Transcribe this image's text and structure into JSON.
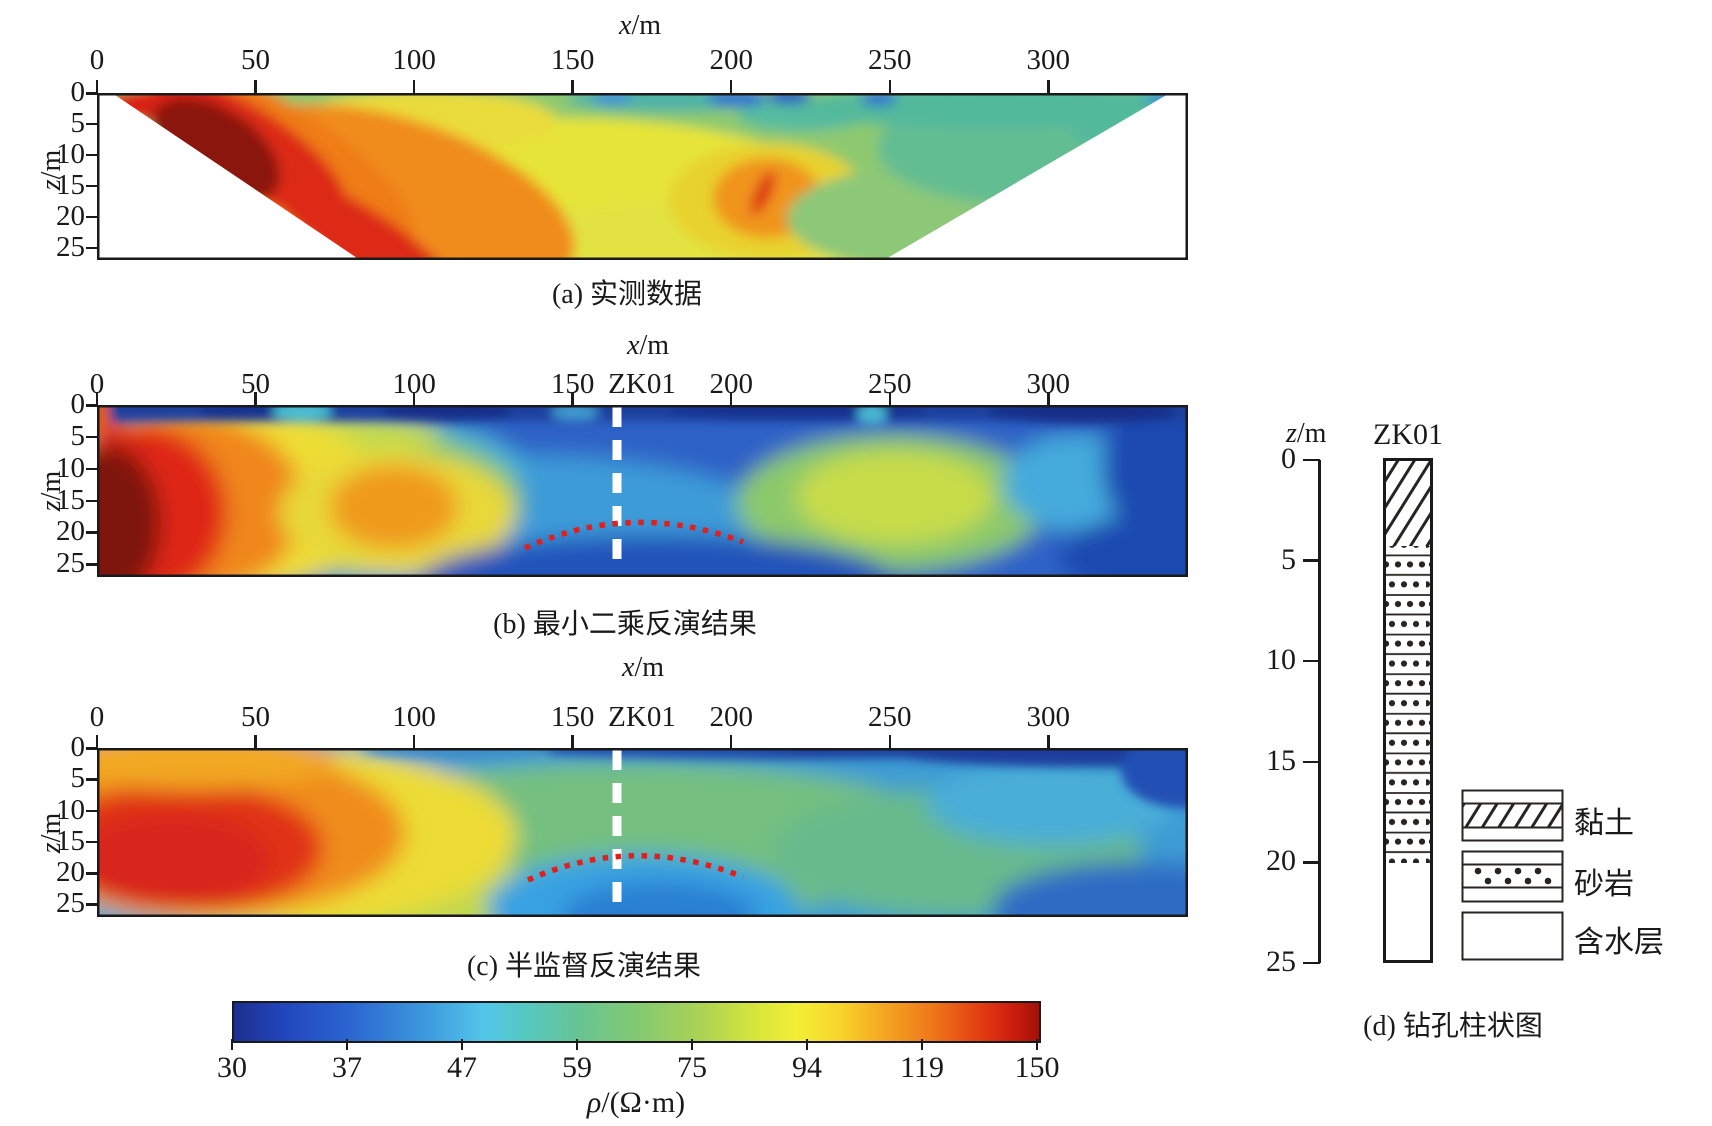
{
  "panels": {
    "a": {
      "caption": "(a) 实测数据"
    },
    "b": {
      "caption": "(b) 最小二乘反演结果"
    },
    "c": {
      "caption": "(c) 半监督反演结果"
    },
    "d": {
      "caption": "(d) 钻孔柱状图"
    }
  },
  "axes": {
    "x_symbol": "x",
    "x_unit": "/m",
    "z_symbol": "z",
    "z_unit": "/m",
    "x_ticks": [
      0,
      50,
      100,
      150,
      200,
      250,
      300
    ],
    "z_ticks": [
      0,
      5,
      10,
      15,
      20,
      25
    ]
  },
  "annotations": {
    "well_label": "ZK01",
    "well_position_x_m": 164,
    "white_dashed_line": "borehole ZK01 trace",
    "red_dotted_line": "inferred sandstone/aquifer interface arc"
  },
  "colorbar": {
    "ticks": [
      30,
      37,
      47,
      59,
      75,
      94,
      119,
      150
    ],
    "label_symbol": "ρ",
    "label_rest": "/(Ω·m)",
    "scale": "logarithmic",
    "colormap": "jet"
  },
  "borehole": {
    "well_id": "ZK01",
    "depth_ticks": [
      0,
      5,
      10,
      15,
      20,
      25
    ],
    "layers": [
      {
        "label": "黏土",
        "pattern": "diagonal-hatch",
        "from_m": 0,
        "to_m": 4.4
      },
      {
        "label": "砂岩",
        "pattern": "dotted-rows",
        "from_m": 4.4,
        "to_m": 20
      },
      {
        "label": "含水层",
        "pattern": "blank",
        "from_m": 20,
        "to_m": 25
      }
    ]
  },
  "legend": {
    "items": [
      {
        "label": "黏土",
        "pattern": "diagonal-hatch"
      },
      {
        "label": "砂岩",
        "pattern": "dotted-rows"
      },
      {
        "label": "含水层",
        "pattern": "blank"
      }
    ]
  },
  "chart_data": [
    {
      "type": "heatmap",
      "panel": "a",
      "title": "(a) 实测数据",
      "xlabel": "x/m",
      "ylabel": "z/m",
      "xlim": [
        0,
        344
      ],
      "depth_range_m": [
        0,
        27
      ],
      "x_ticks": [
        0,
        50,
        100,
        150,
        200,
        250,
        300
      ],
      "z_ticks": [
        0,
        5,
        10,
        15,
        20,
        25
      ],
      "value_label": "ρ/(Ω·m)",
      "value_range": [
        30,
        150
      ],
      "value_scale": "log",
      "colormap": "jet",
      "shape": "trapezoidal pseudosection: data spans x≈5–338 m at surface, narrowing to x≈84–218 m at 27 m depth; white (no data) triangles lower-left and lower-right",
      "features": [
        {
          "desc": "dark-red very high resistivity core ≈150 Ω·m",
          "x_m": [
            15,
            55
          ],
          "z_m": [
            2,
            14
          ]
        },
        {
          "desc": "red high-resistivity band along left flank 110–150 Ω·m",
          "x_m": [
            5,
            90
          ],
          "z_m": [
            0,
            27
          ]
        },
        {
          "desc": "orange zone 85–110 Ω·m",
          "x_m": [
            40,
            160
          ],
          "z_m": [
            3,
            27
          ]
        },
        {
          "desc": "yellow band 75–90 Ω·m",
          "x_m": [
            80,
            200
          ],
          "z_m": [
            0,
            27
          ]
        },
        {
          "desc": "isolated orange anomaly with small red streak ≈100–120 Ω·m",
          "x_m": [
            195,
            235
          ],
          "z_m": [
            12,
            24
          ]
        },
        {
          "desc": "green-teal surface band with small blue spots 30–55 Ω·m",
          "x_m": [
            130,
            344
          ],
          "z_m": [
            0,
            5
          ]
        },
        {
          "desc": "yellow-green background 60–80 Ω·m",
          "x_m": [
            100,
            344
          ],
          "z_m": [
            5,
            27
          ]
        }
      ]
    },
    {
      "type": "heatmap",
      "panel": "b",
      "title": "(b) 最小二乘反演结果",
      "xlabel": "x/m",
      "ylabel": "z/m",
      "xlim": [
        0,
        344
      ],
      "depth_range_m": [
        0,
        27
      ],
      "value_label": "ρ/(Ω·m)",
      "value_range": [
        30,
        150
      ],
      "value_scale": "log",
      "colormap": "jet",
      "features": [
        {
          "desc": "dark-red/maroon high-resistivity core ≈150 Ω·m at left edge",
          "x_m": [
            0,
            18
          ],
          "z_m": [
            8,
            27
          ]
        },
        {
          "desc": "concentric red→orange→yellow halo around core",
          "x_m": [
            0,
            80
          ],
          "z_m": [
            2,
            27
          ]
        },
        {
          "desc": "yellow-green shallow band",
          "x_m": [
            10,
            100
          ],
          "z_m": [
            2,
            6
          ]
        },
        {
          "desc": "orange blob ≈100 Ω·m",
          "x_m": [
            75,
            115
          ],
          "z_m": [
            10,
            22
          ]
        },
        {
          "desc": "thin dark-blue conductive surface layer ≈30–35 Ω·m",
          "x_m": [
            30,
            344
          ],
          "z_m": [
            0,
            2.5
          ]
        },
        {
          "desc": "yellow-green moderate zone ≈70–85 Ω·m",
          "x_m": [
            225,
            280
          ],
          "z_m": [
            8,
            20
          ]
        },
        {
          "desc": "cyan pocket",
          "x_m": [
            290,
            325
          ],
          "z_m": [
            8,
            18
          ]
        },
        {
          "desc": "deep blue zone at right edge and bottom centre",
          "x_m": [
            325,
            344
          ],
          "z_m": [
            0,
            27
          ]
        },
        {
          "desc": "white dashed borehole line ZK01",
          "x_m": 164
        },
        {
          "desc": "red dotted interface arc",
          "from": [
            135,
            22
          ],
          "apex": [
            169,
            17.5
          ],
          "to": [
            204,
            21
          ]
        }
      ]
    },
    {
      "type": "heatmap",
      "panel": "c",
      "title": "(c) 半监督反演结果",
      "xlabel": "x/m",
      "ylabel": "z/m",
      "xlim": [
        0,
        344
      ],
      "depth_range_m": [
        0,
        27
      ],
      "value_label": "ρ/(Ω·m)",
      "value_range": [
        30,
        150
      ],
      "value_scale": "log",
      "colormap": "jet",
      "features": [
        {
          "desc": "broad red-orange high-resistivity zone ≈110–150 Ω·m",
          "x_m": [
            0,
            90
          ],
          "z_m": [
            2,
            27
          ]
        },
        {
          "desc": "orange-yellow surface layer at left",
          "x_m": [
            0,
            70
          ],
          "z_m": [
            0,
            4
          ]
        },
        {
          "desc": "yellow transition rim",
          "x_m": [
            80,
            135
          ],
          "z_m": [
            3,
            27
          ]
        },
        {
          "desc": "green central wash ≈60–75 Ω·m",
          "x_m": [
            130,
            280
          ],
          "z_m": [
            3,
            27
          ]
        },
        {
          "desc": "blue conductive pocket beneath red arc",
          "x_m": [
            150,
            220
          ],
          "z_m": [
            18,
            27
          ]
        },
        {
          "desc": "dark-blue surface band thickening to the right",
          "x_m": [
            130,
            344
          ],
          "z_m": [
            0,
            4
          ]
        },
        {
          "desc": "teal-green zone right half",
          "x_m": [
            240,
            330
          ],
          "z_m": [
            5,
            22
          ]
        },
        {
          "desc": "blue bottom-right corner",
          "x_m": [
            300,
            344
          ],
          "z_m": [
            18,
            27
          ]
        },
        {
          "desc": "white dashed borehole line ZK01",
          "x_m": 164
        },
        {
          "desc": "red dotted interface arc",
          "from": [
            136,
            21
          ],
          "apex": [
            170,
            17
          ],
          "to": [
            204,
            20.5
          ]
        }
      ]
    },
    {
      "type": "table",
      "panel": "d",
      "title": "(d) 钻孔柱状图",
      "well": "ZK01",
      "ylabel": "z/m",
      "depth_ticks": [
        0,
        5,
        10,
        15,
        20,
        25
      ],
      "layers": [
        {
          "lithology": "黏土",
          "pattern": "diagonal-hatch",
          "from_m": 0,
          "to_m": 4.4
        },
        {
          "lithology": "砂岩",
          "pattern": "dotted-rows",
          "from_m": 4.4,
          "to_m": 20
        },
        {
          "lithology": "含水层",
          "pattern": "blank",
          "from_m": 20,
          "to_m": 25
        }
      ]
    },
    {
      "type": "colorbar",
      "orientation": "horizontal",
      "ticks": [
        30,
        37,
        47,
        59,
        75,
        94,
        119,
        150
      ],
      "label": "ρ/(Ω·m)",
      "scale": "logarithmic",
      "colormap": "jet (blue→cyan→green→yellow→orange→red)"
    }
  ]
}
